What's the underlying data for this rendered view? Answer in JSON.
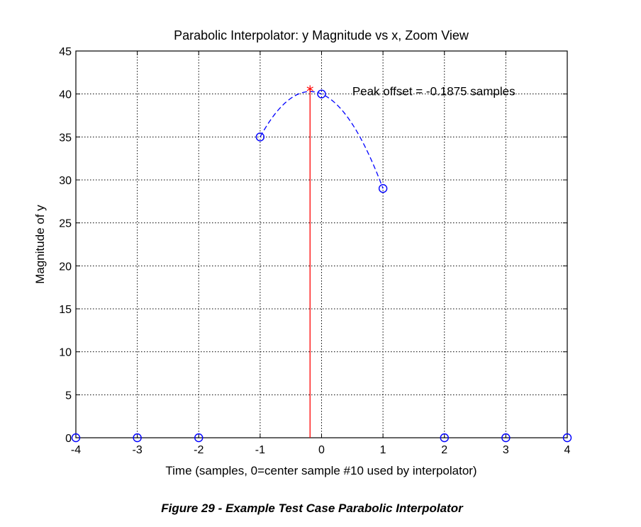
{
  "chart_data": {
    "type": "line",
    "title": "Parabolic Interpolator:  y Magnitude vs x, Zoom View",
    "xlabel": "Time (samples, 0=center sample #10 used by interpolator)",
    "ylabel": "Magnitude of y",
    "xlim": [
      -4,
      4
    ],
    "ylim": [
      0,
      45
    ],
    "xticks": [
      "-4",
      "-3",
      "-2",
      "-1",
      "0",
      "1",
      "2",
      "3",
      "4"
    ],
    "yticks": [
      "0",
      "5",
      "10",
      "15",
      "20",
      "25",
      "30",
      "35",
      "40",
      "45"
    ],
    "grid": true,
    "series": [
      {
        "style": "markers",
        "marker": "circle",
        "color": "#0000ff",
        "x": [
          -4,
          -3,
          -2,
          -1,
          0,
          1,
          2,
          3,
          4
        ],
        "y": [
          0,
          0,
          0,
          35,
          40,
          29,
          0,
          0,
          0
        ]
      },
      {
        "style": "dashed-line",
        "color": "#0000ff",
        "curve": "parabola through samples -1, 0, 1",
        "x": [
          -1,
          0,
          1
        ],
        "y": [
          35,
          40,
          29
        ]
      },
      {
        "style": "stem",
        "marker": "asterisk",
        "color": "#ff0000",
        "x": [
          -0.1875
        ],
        "y": [
          40.6
        ]
      }
    ],
    "annotations": [
      {
        "text": "Peak offset = -0.1875 samples",
        "x": 0.5,
        "y": 40
      }
    ]
  },
  "caption": "Figure 29 - Example Test Case Parabolic Interpolator"
}
